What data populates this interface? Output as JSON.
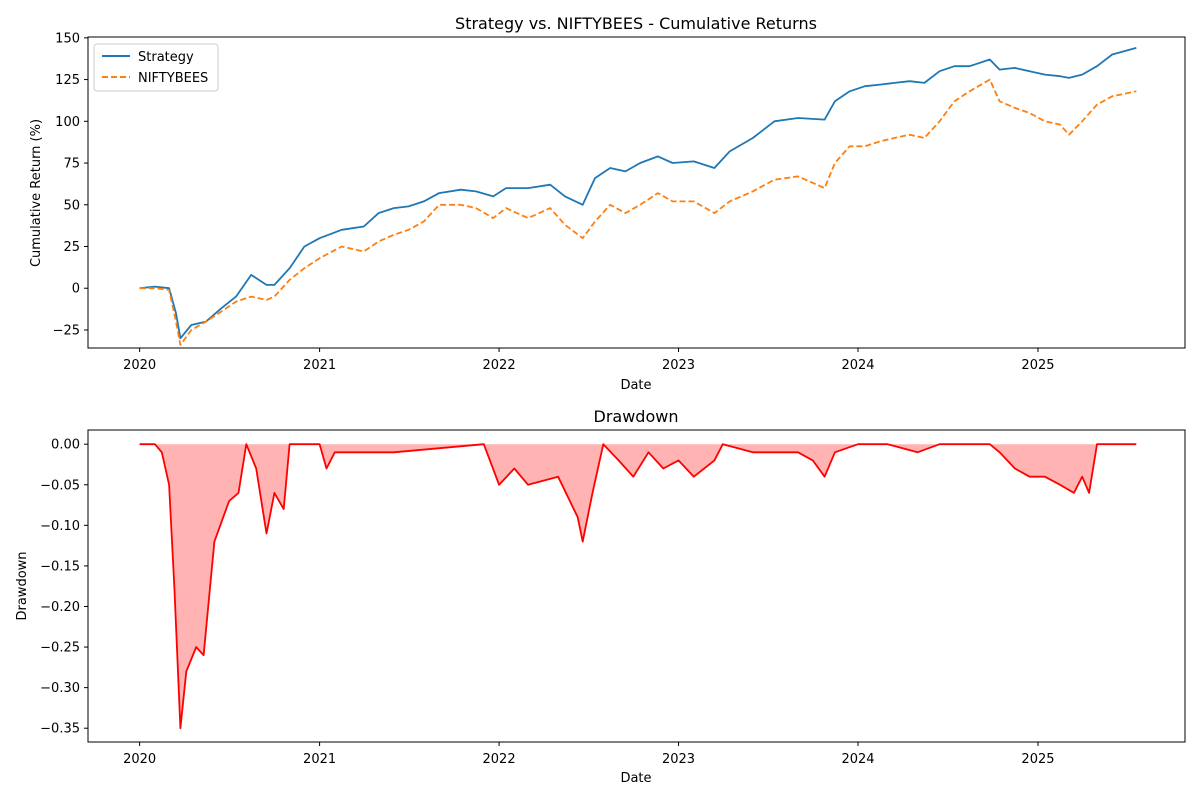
{
  "colors": {
    "strategy": "#1f77b4",
    "benchmark": "#ff7f0e",
    "drawdown_line": "#ff0000",
    "drawdown_fill": "#ffb3b3"
  },
  "chart_data": [
    {
      "type": "line",
      "title": "Strategy vs. NIFTYBEES - Cumulative Returns",
      "xlabel": "Date",
      "ylabel": "Cumulative Return (%)",
      "x_ticks": [
        "2020",
        "2021",
        "2022",
        "2023",
        "2024",
        "2025"
      ],
      "y_ticks": [
        "150",
        "125",
        "100",
        "75",
        "50",
        "25",
        "0",
        "−25"
      ],
      "xlim": [
        "2019-09-18",
        "2025-10-27"
      ],
      "ylim": [
        -35.8,
        150.5
      ],
      "grid": false,
      "legend": "top-left",
      "x": [
        "2020-01-01",
        "2020-02-01",
        "2020-03-01",
        "2020-03-15",
        "2020-03-24",
        "2020-04-15",
        "2020-05-15",
        "2020-06-15",
        "2020-07-15",
        "2020-08-15",
        "2020-09-15",
        "2020-10-01",
        "2020-11-01",
        "2020-12-01",
        "2021-01-01",
        "2021-02-15",
        "2021-04-01",
        "2021-05-01",
        "2021-06-01",
        "2021-07-01",
        "2021-08-01",
        "2021-09-01",
        "2021-10-15",
        "2021-11-15",
        "2021-12-20",
        "2022-01-15",
        "2022-03-01",
        "2022-04-15",
        "2022-05-15",
        "2022-06-20",
        "2022-07-15",
        "2022-08-15",
        "2022-09-15",
        "2022-10-15",
        "2022-11-20",
        "2022-12-20",
        "2023-02-01",
        "2023-03-15",
        "2023-04-15",
        "2023-06-01",
        "2023-07-15",
        "2023-09-01",
        "2023-10-25",
        "2023-11-15",
        "2023-12-15",
        "2024-01-15",
        "2024-02-15",
        "2024-03-15",
        "2024-04-15",
        "2024-05-15",
        "2024-06-15",
        "2024-07-15",
        "2024-08-15",
        "2024-09-25",
        "2024-10-15",
        "2024-11-15",
        "2024-12-15",
        "2025-01-15",
        "2025-02-15",
        "2025-03-05",
        "2025-04-01",
        "2025-05-01",
        "2025-06-01",
        "2025-07-20"
      ],
      "series": [
        {
          "name": "Strategy",
          "style": "solid",
          "values": [
            0,
            1,
            0,
            -15,
            -30,
            -22,
            -20,
            -12,
            -5,
            8,
            2,
            2,
            12,
            25,
            30,
            35,
            37,
            45,
            48,
            49,
            52,
            57,
            59,
            58,
            55,
            60,
            60,
            62,
            55,
            50,
            66,
            72,
            70,
            75,
            79,
            75,
            76,
            72,
            82,
            90,
            100,
            102,
            101,
            112,
            118,
            121,
            122,
            123,
            124,
            123,
            130,
            133,
            133,
            137,
            131,
            132,
            130,
            128,
            127,
            126,
            128,
            133,
            140,
            144
          ]
        },
        {
          "name": "NIFTYBEES",
          "style": "dashed",
          "values": [
            0,
            0,
            -1,
            -20,
            -34,
            -25,
            -20,
            -14,
            -8,
            -5,
            -7,
            -5,
            5,
            12,
            18,
            25,
            22,
            28,
            32,
            35,
            40,
            50,
            50,
            48,
            42,
            48,
            42,
            48,
            38,
            30,
            40,
            50,
            45,
            50,
            57,
            52,
            52,
            45,
            52,
            58,
            65,
            67,
            60,
            75,
            85,
            85,
            88,
            90,
            92,
            90,
            100,
            112,
            118,
            125,
            112,
            108,
            105,
            100,
            98,
            92,
            100,
            110,
            115,
            118
          ]
        }
      ]
    },
    {
      "type": "area",
      "title": "Drawdown",
      "xlabel": "Date",
      "ylabel": "Drawdown",
      "x_ticks": [
        "2020",
        "2021",
        "2022",
        "2023",
        "2024",
        "2025"
      ],
      "y_ticks": [
        "0.00",
        "−0.05",
        "−0.10",
        "−0.15",
        "−0.20",
        "−0.25",
        "−0.30",
        "−0.35"
      ],
      "xlim": [
        "2019-09-18",
        "2025-10-27"
      ],
      "ylim": [
        -0.367,
        0.0175
      ],
      "grid": false,
      "x": [
        "2020-01-01",
        "2020-02-01",
        "2020-02-15",
        "2020-03-01",
        "2020-03-12",
        "2020-03-24",
        "2020-04-05",
        "2020-04-25",
        "2020-05-10",
        "2020-06-01",
        "2020-07-01",
        "2020-07-20",
        "2020-08-05",
        "2020-08-25",
        "2020-09-15",
        "2020-10-01",
        "2020-10-20",
        "2020-11-01",
        "2021-01-01",
        "2021-01-15",
        "2021-02-01",
        "2021-03-01",
        "2021-06-01",
        "2021-12-01",
        "2022-01-01",
        "2022-02-01",
        "2022-03-01",
        "2022-05-01",
        "2022-06-10",
        "2022-06-20",
        "2022-07-10",
        "2022-08-01",
        "2022-09-01",
        "2022-10-01",
        "2022-11-01",
        "2022-12-01",
        "2023-01-01",
        "2023-02-01",
        "2023-03-15",
        "2023-04-01",
        "2023-06-01",
        "2023-09-01",
        "2023-10-01",
        "2023-10-25",
        "2023-11-15",
        "2024-01-01",
        "2024-03-01",
        "2024-05-01",
        "2024-06-15",
        "2024-08-01",
        "2024-09-25",
        "2024-10-15",
        "2024-11-15",
        "2024-12-15",
        "2025-01-15",
        "2025-02-15",
        "2025-03-15",
        "2025-04-01",
        "2025-04-15",
        "2025-05-01",
        "2025-07-20"
      ],
      "values": [
        0,
        0,
        -0.01,
        -0.05,
        -0.18,
        -0.35,
        -0.28,
        -0.25,
        -0.26,
        -0.12,
        -0.07,
        -0.06,
        0,
        -0.03,
        -0.11,
        -0.06,
        -0.08,
        0,
        0,
        -0.03,
        -0.01,
        -0.01,
        -0.01,
        0,
        -0.05,
        -0.03,
        -0.05,
        -0.04,
        -0.09,
        -0.12,
        -0.06,
        0,
        -0.02,
        -0.04,
        -0.01,
        -0.03,
        -0.02,
        -0.04,
        -0.02,
        0,
        -0.01,
        -0.01,
        -0.02,
        -0.04,
        -0.01,
        0,
        0,
        -0.01,
        0,
        0,
        0,
        -0.01,
        -0.03,
        -0.04,
        -0.04,
        -0.05,
        -0.06,
        -0.04,
        -0.06,
        0,
        0
      ]
    }
  ]
}
